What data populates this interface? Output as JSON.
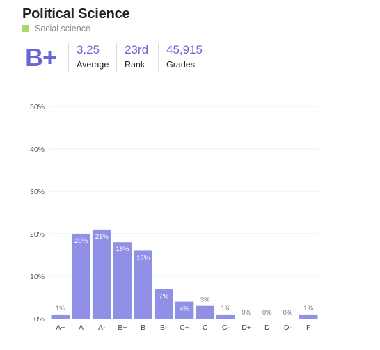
{
  "header": {
    "title": "Political Science",
    "category_label": "Social science",
    "category_color": "#a6d96a",
    "grade": "B+",
    "accent_color": "#6b66d6",
    "stats": [
      {
        "value": "3.25",
        "label": "Average"
      },
      {
        "value": "23rd",
        "label": "Rank"
      },
      {
        "value": "45,915",
        "label": "Grades"
      }
    ]
  },
  "chart_data": {
    "type": "bar",
    "categories": [
      "A+",
      "A",
      "A-",
      "B+",
      "B",
      "B-",
      "C+",
      "C",
      "C-",
      "D+",
      "D",
      "D-",
      "F"
    ],
    "values": [
      1,
      20,
      21,
      18,
      16,
      7,
      4,
      3,
      1,
      0,
      0,
      0,
      1
    ],
    "data_labels": [
      "1%",
      "20%",
      "21%",
      "18%",
      "16%",
      "7%",
      "4%",
      "3%",
      "1%",
      "0%",
      "0%",
      "0%",
      "1%"
    ],
    "yticks": [
      0,
      10,
      20,
      30,
      40,
      50
    ],
    "ytick_labels": [
      "0%",
      "10%",
      "20%",
      "30%",
      "40%",
      "50%"
    ],
    "ylim": [
      0,
      50
    ],
    "bar_color": "#9091e6",
    "grid": true
  }
}
